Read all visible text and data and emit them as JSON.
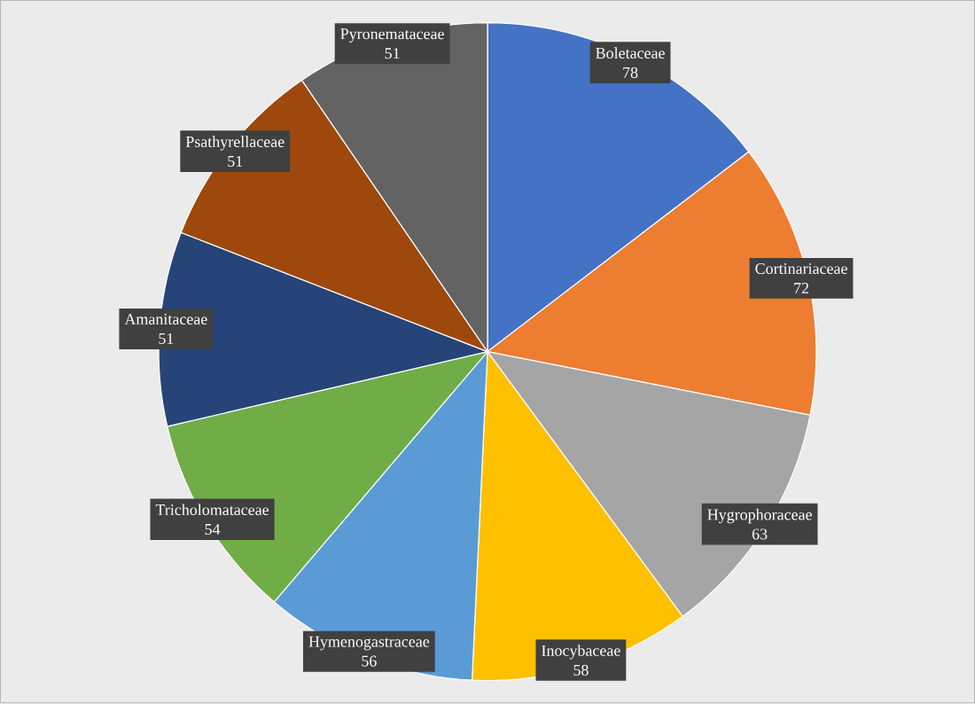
{
  "chart_data": {
    "type": "pie",
    "categories": [
      "Boletaceae",
      "Cortinariaceae",
      "Hygrophoraceae",
      "Inocybaceae",
      "Hymenogastraceae",
      "Tricholomataceae",
      "Amanitaceae",
      "Psathyrellaceae",
      "Pyronemataceae"
    ],
    "values": [
      78,
      72,
      63,
      58,
      56,
      54,
      51,
      51,
      51
    ],
    "colors": [
      "#4472c4",
      "#ed7d31",
      "#a5a5a5",
      "#ffc000",
      "#5b9bd5",
      "#70ad47",
      "#264478",
      "#9e480e",
      "#636363"
    ],
    "data_labels": true
  }
}
